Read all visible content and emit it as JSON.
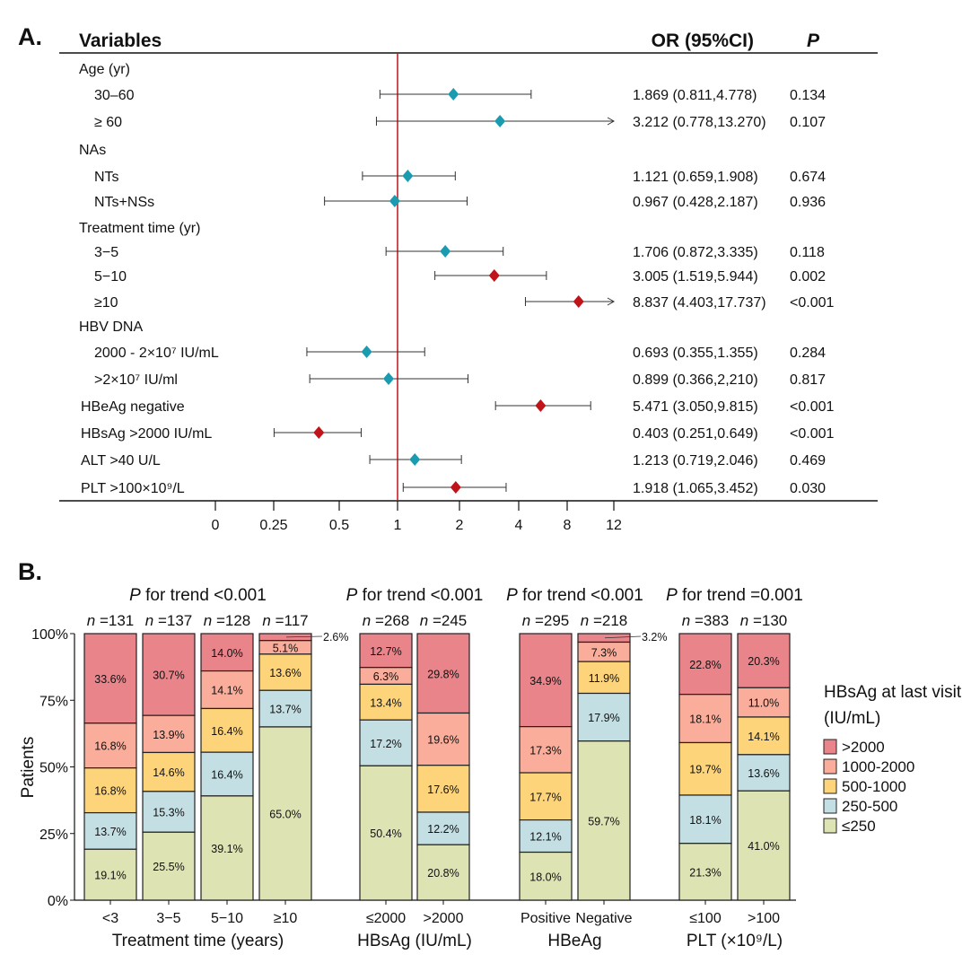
{
  "chart_data": [
    {
      "type": "forest",
      "panel_label": "A.",
      "headers": {
        "variables": "Variables",
        "or": "OR (95%CI)",
        "p": "P"
      },
      "x_ticks": [
        "0",
        "0.25",
        "0.5",
        "1",
        "2",
        "4",
        "8",
        "12"
      ],
      "reference_line": 1,
      "colors": {
        "significant": "#c0141a",
        "nonsignificant": "#1a9bb0",
        "reference": "#c0141a"
      },
      "rows": [
        {
          "label": "Age (yr)",
          "header": true
        },
        {
          "label": "30–60",
          "or": 1.869,
          "lo": 0.811,
          "hi": 4.778,
          "text": "1.869 (0.811,4.778)",
          "p": "0.134",
          "sig": false
        },
        {
          "label": "≥ 60",
          "or": 3.212,
          "lo": 0.778,
          "hi": 13.27,
          "text": "3.212 (0.778,13.270)",
          "p": "0.107",
          "sig": false
        },
        {
          "label": "NAs",
          "header": true
        },
        {
          "label": "NTs",
          "or": 1.121,
          "lo": 0.659,
          "hi": 1.908,
          "text": "1.121 (0.659,1.908)",
          "p": "0.674",
          "sig": false
        },
        {
          "label": "NTs+NSs",
          "or": 0.967,
          "lo": 0.428,
          "hi": 2.187,
          "text": "0.967 (0.428,2.187)",
          "p": "0.936",
          "sig": false
        },
        {
          "label": "Treatment time (yr)",
          "header": true
        },
        {
          "label": "3−5",
          "or": 1.706,
          "lo": 0.872,
          "hi": 3.335,
          "text": "1.706 (0.872,3.335)",
          "p": "0.118",
          "sig": false
        },
        {
          "label": "5−10",
          "or": 3.005,
          "lo": 1.519,
          "hi": 5.944,
          "text": "3.005 (1.519,5.944)",
          "p": "0.002",
          "sig": true
        },
        {
          "label": "≥10",
          "or": 8.837,
          "lo": 4.403,
          "hi": 17.737,
          "text": "8.837 (4.403,17.737)",
          "p": "<0.001",
          "sig": true
        },
        {
          "label": "HBV DNA",
          "header": true
        },
        {
          "label": "2000 - 2×10⁷ IU/mL",
          "or": 0.693,
          "lo": 0.355,
          "hi": 1.355,
          "text": "0.693 (0.355,1.355)",
          "p": "0.284",
          "sig": false
        },
        {
          "label": ">2×10⁷ IU/ml",
          "or": 0.899,
          "lo": 0.366,
          "hi": 2.21,
          "text": "0.899 (0.366,2,210)",
          "p": "0.817",
          "sig": false
        },
        {
          "label": "HBeAg negative",
          "or": 5.471,
          "lo": 3.05,
          "hi": 9.815,
          "text": "5.471 (3.050,9.815)",
          "p": "<0.001",
          "sig": true,
          "top": true
        },
        {
          "label": "HBsAg >2000 IU/mL",
          "or": 0.403,
          "lo": 0.251,
          "hi": 0.649,
          "text": "0.403 (0.251,0.649)",
          "p": "<0.001",
          "sig": true,
          "top": true
        },
        {
          "label": "ALT >40 U/L",
          "or": 1.213,
          "lo": 0.719,
          "hi": 2.046,
          "text": "1.213 (0.719,2.046)",
          "p": "0.469",
          "sig": false,
          "top": true
        },
        {
          "label": "PLT >100×10⁹/L",
          "or": 1.918,
          "lo": 1.065,
          "hi": 3.452,
          "text": "1.918 (1.065,3.452)",
          "p": "0.030",
          "sig": true,
          "top": true
        }
      ]
    },
    {
      "type": "stacked-bar",
      "panel_label": "B.",
      "ylabel": "Patients",
      "y_ticks": [
        "0%",
        "25%",
        "50%",
        "75%",
        "100%"
      ],
      "ylim": [
        0,
        100
      ],
      "legend": {
        "title": "HBsAg at last visit",
        "subtitle": "(IU/mL)",
        "placement": "right",
        "items": [
          ">2000",
          "1000-2000",
          "500-1000",
          "250-500",
          "≤250"
        ]
      },
      "series_colors": [
        "#e8848a",
        "#f9ad9a",
        "#fdd47a",
        "#c3dfe4",
        "#dde3b3"
      ],
      "groups": [
        {
          "trend_prefix": "P",
          "trend": " for trend <0.001",
          "xlabel": "Treatment time (years)",
          "bars": [
            {
              "label": "<3",
              "n": "=131",
              "values": [
                33.6,
                16.8,
                16.8,
                13.7,
                19.1
              ]
            },
            {
              "label": "3−5",
              "n": "=137",
              "values": [
                30.7,
                13.9,
                14.6,
                15.3,
                25.5
              ]
            },
            {
              "label": "5−10",
              "n": "=128",
              "values": [
                14.0,
                14.1,
                16.4,
                16.4,
                39.1
              ]
            },
            {
              "label": "≥10",
              "n": "=117",
              "values": [
                2.6,
                5.1,
                13.6,
                13.7,
                65.0
              ],
              "outside_label": "2.6%"
            }
          ]
        },
        {
          "trend_prefix": "P",
          "trend": " for trend <0.001",
          "xlabel": "HBsAg (IU/mL)",
          "bars": [
            {
              "label": "≤2000",
              "n": "=268",
              "values": [
                12.7,
                6.3,
                13.4,
                17.2,
                50.4
              ]
            },
            {
              "label": ">2000",
              "n": "=245",
              "values": [
                29.8,
                19.6,
                17.6,
                12.2,
                20.8
              ]
            }
          ]
        },
        {
          "trend_prefix": "P",
          "trend": " for trend <0.001",
          "xlabel": "HBeAg",
          "bars": [
            {
              "label": "Positive",
              "n": "=295",
              "values": [
                34.9,
                17.3,
                17.7,
                12.1,
                18.0
              ]
            },
            {
              "label": "Negative",
              "n": "=218",
              "values": [
                3.2,
                7.3,
                11.9,
                17.9,
                59.7
              ],
              "outside_label": "3.2%"
            }
          ]
        },
        {
          "trend_prefix": "P",
          "trend": " for trend =0.001",
          "xlabel": "PLT (×10⁹/L)",
          "bars": [
            {
              "label": "≤100",
              "n": "=383",
              "values": [
                22.8,
                18.1,
                19.7,
                18.1,
                21.3
              ]
            },
            {
              "label": ">100",
              "n": "=130",
              "values": [
                20.3,
                11.0,
                14.1,
                13.6,
                41.0
              ]
            }
          ]
        }
      ]
    }
  ]
}
